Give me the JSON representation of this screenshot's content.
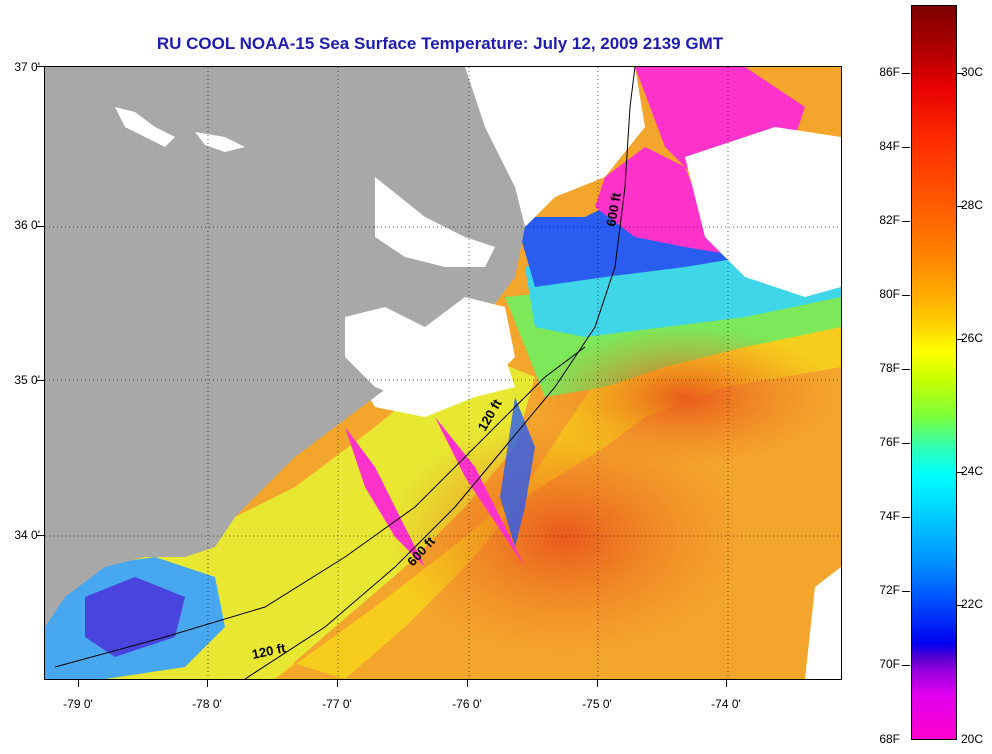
{
  "title": "RU COOL  NOAA-15  Sea Surface Temperature:  July 12, 2009 2139 GMT",
  "lat_labels": [
    "37 0'",
    "36 0'",
    "35 0'",
    "34 0'"
  ],
  "lon_labels": [
    "-79 0'",
    "-78 0'",
    "-77 0'",
    "-76 0'",
    "-75 0'",
    "-74 0'"
  ],
  "isobath_labels": [
    "600 ft",
    "120 ft",
    "600 ft",
    "120 ft"
  ],
  "colorbar": {
    "fahrenheit": [
      "86F",
      "84F",
      "82F",
      "80F",
      "78F",
      "76F",
      "74F",
      "72F",
      "70F",
      "68F"
    ],
    "celsius": [
      "30C",
      "28C",
      "26C",
      "24C",
      "22C",
      "20C"
    ]
  },
  "colors": {
    "title": "#1c1cb4",
    "land": "#a8a8a8",
    "cloud": "#ffffff",
    "warm_water": "#f3ab2e",
    "cool_water": "#ff33cc"
  }
}
